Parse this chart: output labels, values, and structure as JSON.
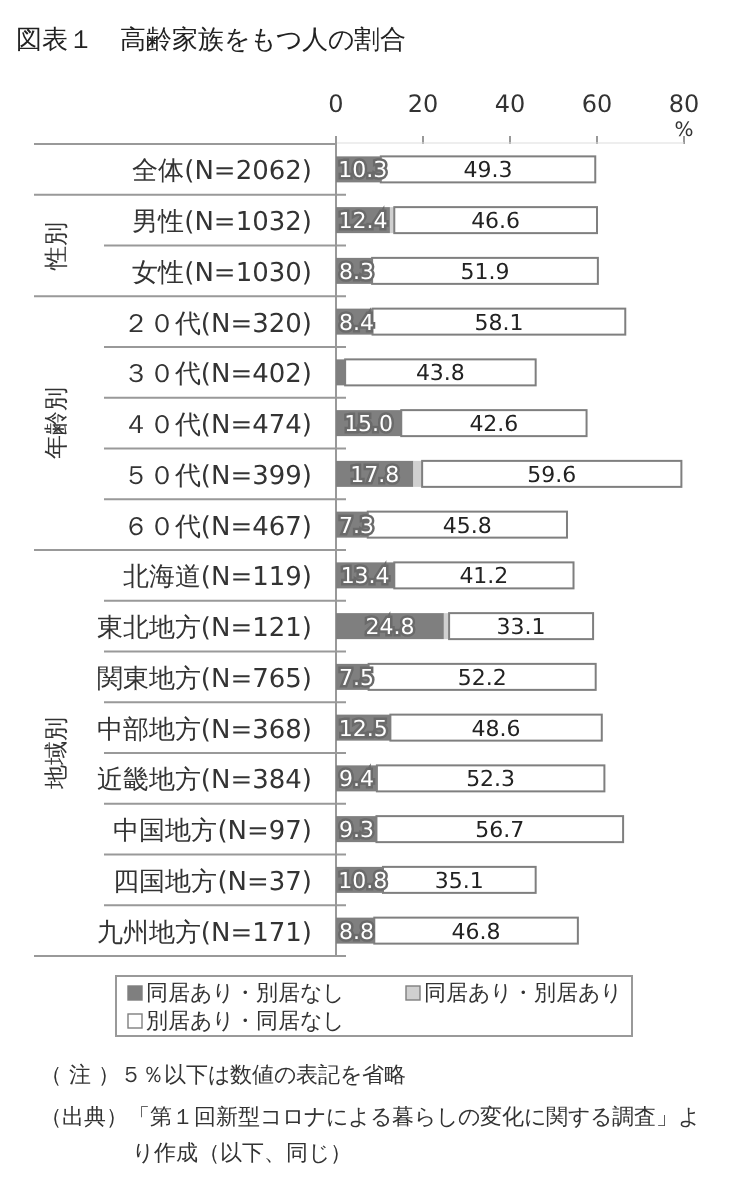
{
  "chart_data": {
    "type": "bar",
    "orientation": "horizontal",
    "stacked": true,
    "title": "図表１　高齢家族をもつ人の割合",
    "xlabel": "%",
    "categories": [
      "全体(N=2062)",
      "男性(N=1032)",
      "女性(N=1030)",
      "２０代(N=320)",
      "３０代(N=402)",
      "４０代(N=474)",
      "５０代(N=399)",
      "６０代(N=467)",
      "北海道(N=119)",
      "東北地方(N=121)",
      "関東地方(N=765)",
      "中部地方(N=368)",
      "近畿地方(N=384)",
      "中国地方(N=97)",
      "四国地方(N=37)",
      "九州地方(N=171)"
    ],
    "series": [
      {
        "name": "同居あり・別居なし",
        "color": "#7f7f7f",
        "values": [
          10.3,
          12.4,
          8.3,
          8.4,
          2.1,
          15.0,
          17.8,
          7.3,
          13.4,
          24.8,
          7.5,
          12.5,
          9.4,
          9.3,
          10.8,
          8.8
        ],
        "value_labels": [
          "10.3",
          "12.4",
          "8.3",
          "8.4",
          null,
          "15.0",
          "17.8",
          "7.3",
          "13.4",
          "24.8",
          "7.5",
          "12.5",
          "9.4",
          "9.3",
          "10.8",
          "8.8"
        ]
      },
      {
        "name": "同居あり・別居あり",
        "color": "#d0d0d0",
        "values": [
          null,
          1.0,
          null,
          null,
          0,
          null,
          2.0,
          0,
          0,
          1.2,
          null,
          null,
          null,
          0,
          0,
          null
        ]
      },
      {
        "name": "別居あり・同居なし",
        "color": "#ffffff",
        "values": [
          49.3,
          46.6,
          51.9,
          58.1,
          43.8,
          42.6,
          59.6,
          45.8,
          41.2,
          33.1,
          52.2,
          48.6,
          52.3,
          56.7,
          35.1,
          46.8
        ],
        "value_labels": [
          "49.3",
          "46.6",
          "51.9",
          "58.1",
          "43.8",
          "42.6",
          "59.6",
          "45.8",
          "41.2",
          "33.1",
          "52.2",
          "48.6",
          "52.3",
          "56.7",
          "35.1",
          "46.8"
        ]
      }
    ],
    "xlim": [
      0,
      80
    ],
    "xticks": [
      0,
      20,
      40,
      60,
      80
    ],
    "legend": "bottom",
    "annotations": [
      "性別",
      "年齢別",
      "地域別",
      "（ 注 ）５％以下は数値の表記を省略",
      "（出典）「第１回新型コロナによる暮らしの変化に関する調査」より作成（以下、同じ）"
    ]
  }
}
